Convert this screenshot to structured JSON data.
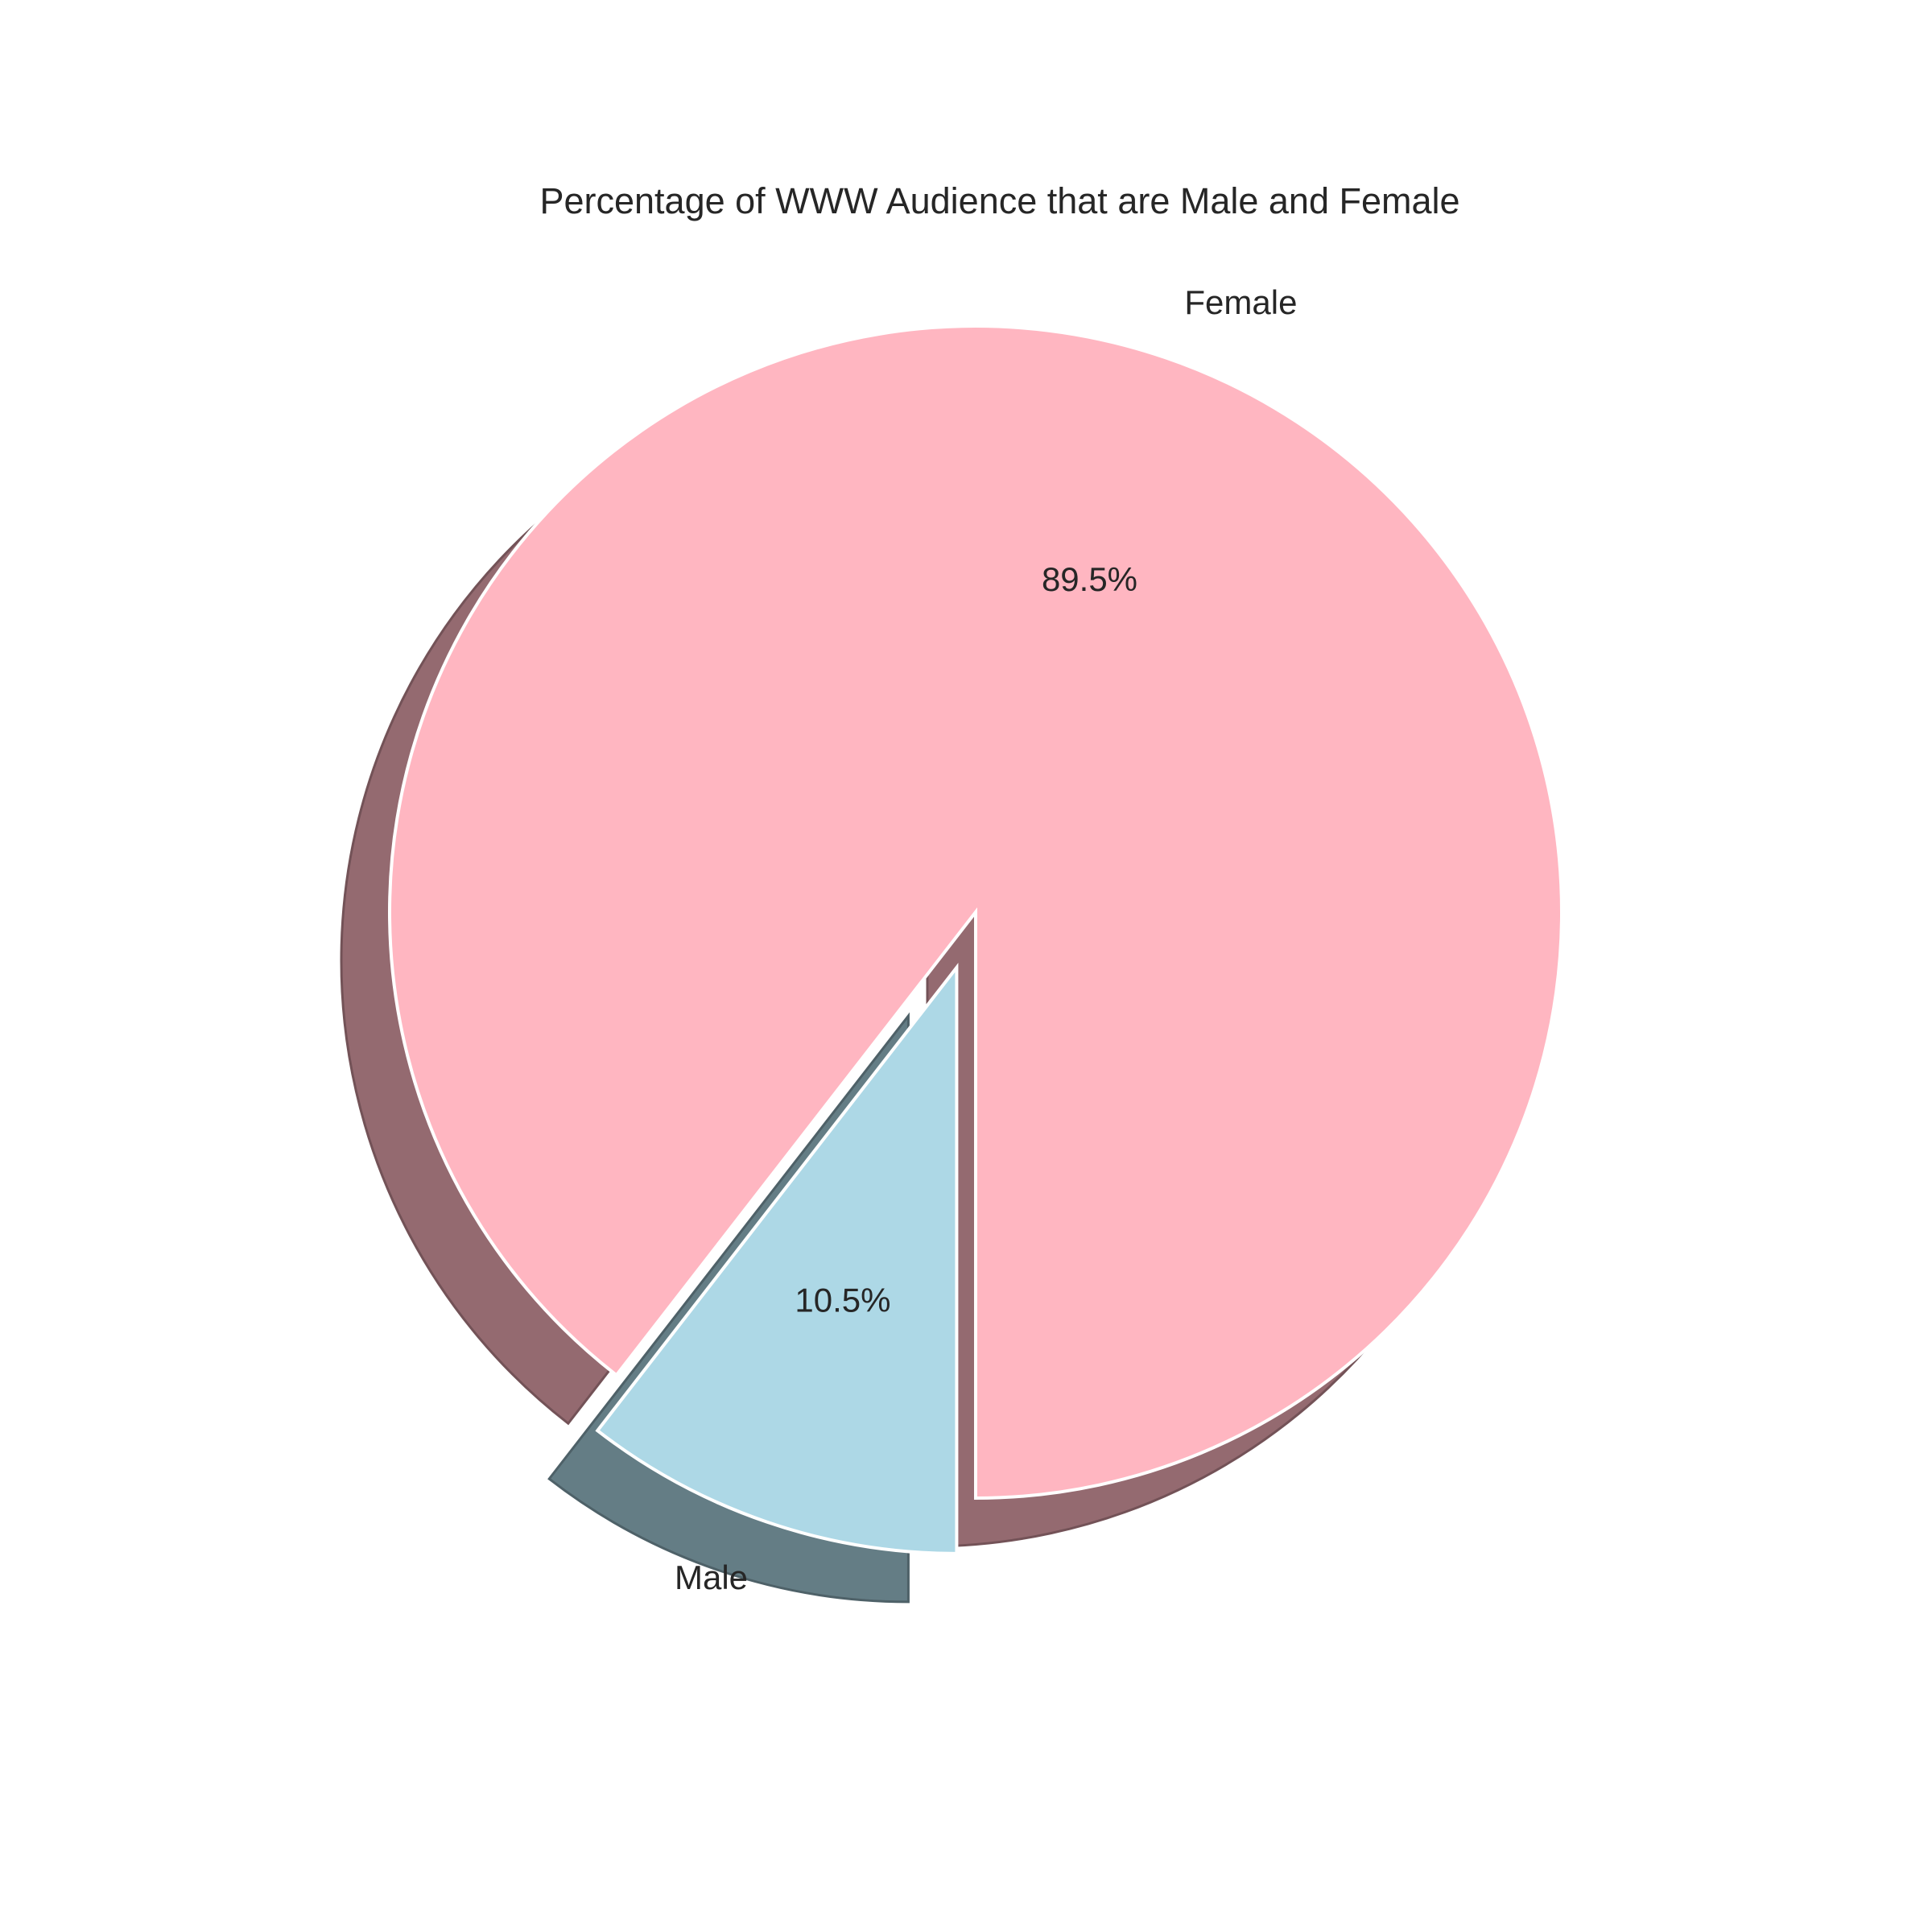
{
  "chart_data": {
    "type": "pie",
    "title": "Percentage of WWW Audience that are Male and Female",
    "slices": [
      {
        "label": "Female",
        "value": 89.5,
        "pct_label": "89.5%",
        "color": "#ffb6c1",
        "exploded": false
      },
      {
        "label": "Male",
        "value": 10.5,
        "pct_label": "10.5%",
        "color": "#add8e6",
        "exploded": true
      }
    ],
    "start_angle_deg": 270,
    "direction": "counterclockwise",
    "shadow": true,
    "edge_color": "#ffffff"
  }
}
